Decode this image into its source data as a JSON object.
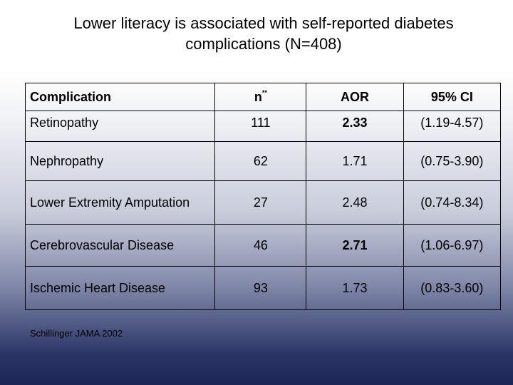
{
  "title": {
    "line1": "Lower literacy is associated with self-reported diabetes",
    "line2": "complications (N=408)"
  },
  "table": {
    "headers": {
      "complication": "Complication",
      "n": "n",
      "n_superscript": "**",
      "aor": "AOR",
      "ci": "95% CI"
    },
    "rows": [
      {
        "complication": "Retinopathy",
        "n": "111",
        "aor": "2.33",
        "aor_bold": true,
        "ci": "(1.19-4.57)"
      },
      {
        "complication": "Nephropathy",
        "n": "62",
        "aor": "1.71",
        "aor_bold": false,
        "ci": "(0.75-3.90)"
      },
      {
        "complication": "Lower Extremity Amputation",
        "n": "27",
        "aor": "2.48",
        "aor_bold": false,
        "ci": "(0.74-8.34)"
      },
      {
        "complication": "Cerebrovascular Disease",
        "n": "46",
        "aor": "2.71",
        "aor_bold": true,
        "ci": "(1.06-6.97)"
      },
      {
        "complication": "Ischemic Heart Disease",
        "n": "93",
        "aor": "1.73",
        "aor_bold": false,
        "ci": "(0.83-3.60)"
      }
    ]
  },
  "source": "Schillinger JAMA 2002"
}
